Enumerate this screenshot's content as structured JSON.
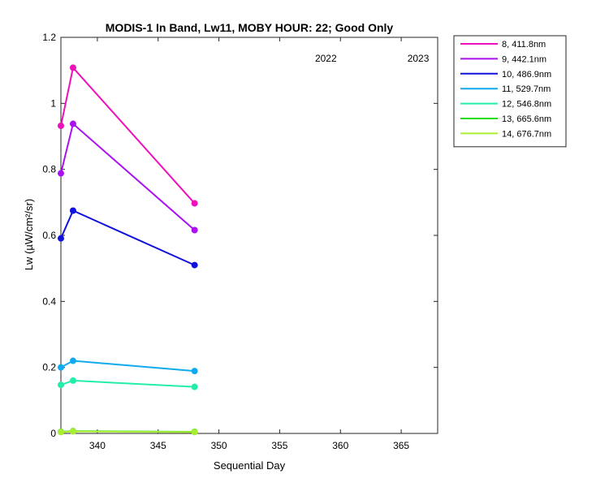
{
  "chart_data": {
    "type": "line",
    "title": "MODIS-1 In Band,  Lw11, MOBY HOUR: 22;  Good Only",
    "xlabel": "Sequential Day",
    "ylabel": "Lw (µW/cm²/sr)",
    "xlim": [
      337,
      368
    ],
    "ylim": [
      0,
      1.2
    ],
    "xticks": [
      340,
      345,
      350,
      355,
      360,
      365
    ],
    "yticks": [
      0,
      0.2,
      0.4,
      0.6,
      0.8,
      1,
      1.2
    ],
    "xtick_labels": [
      "340",
      "345",
      "350",
      "355",
      "360",
      "365"
    ],
    "ytick_labels": [
      "0",
      "0.2",
      "0.4",
      "0.6",
      "0.8",
      "1",
      "1.2"
    ],
    "year_labels": [
      {
        "text": "2022",
        "x": 358.8
      },
      {
        "text": "2023",
        "x": 366.4
      }
    ],
    "grid": false,
    "legend_position": "outside-top-right",
    "x": [
      337,
      338,
      348
    ],
    "series": [
      {
        "name": "8, 411.8nm",
        "color": "#ee11bb",
        "values": [
          0.932,
          1.108,
          0.697
        ]
      },
      {
        "name": "9, 442.1nm",
        "color": "#aa11ee",
        "values": [
          0.788,
          0.938,
          0.616
        ]
      },
      {
        "name": "10, 486.9nm",
        "color": "#1111dd",
        "values": [
          0.591,
          0.675,
          0.51
        ]
      },
      {
        "name": "11, 529.7nm",
        "color": "#11aaee",
        "values": [
          0.2,
          0.22,
          0.189
        ]
      },
      {
        "name": "12, 546.8nm",
        "color": "#22eeaa",
        "values": [
          0.147,
          0.16,
          0.141
        ]
      },
      {
        "name": "13, 665.6nm",
        "color": "#22dd11",
        "values": [
          0.005,
          0.007,
          0.005
        ]
      },
      {
        "name": "14, 676.7nm",
        "color": "#aaee33",
        "values": [
          0.004,
          0.006,
          0.004
        ]
      }
    ]
  }
}
